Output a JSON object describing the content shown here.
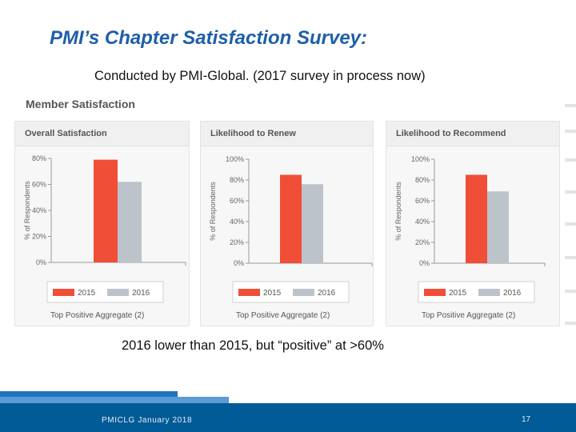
{
  "slide": {
    "title": "PMI’s Chapter Satisfaction Survey:",
    "subtitle": "Conducted by PMI-Global.   (2017 survey in process now)",
    "section_title": "Member Satisfaction",
    "caption": "2016 lower than 2015, but “positive” at >60%",
    "footer": "PMICLG January 2018",
    "page_number": "17"
  },
  "colors": {
    "title": "#1f5fa8",
    "series_2015": "#f04e37",
    "series_2016": "#bcc3cb",
    "footer_band": "#005b96"
  },
  "chart_data": [
    {
      "type": "bar",
      "title": "Overall Satisfaction",
      "ylabel": "% of Respondents",
      "xlabel": "Top Positive Aggregate (2)",
      "ylim": [
        0,
        80
      ],
      "yticks": [
        "0%",
        "20%",
        "40%",
        "60%",
        "80%"
      ],
      "legend": [
        "2015",
        "2016"
      ],
      "series": [
        {
          "name": "2015",
          "values": [
            79
          ]
        },
        {
          "name": "2016",
          "values": [
            62
          ]
        }
      ]
    },
    {
      "type": "bar",
      "title": "Likelihood to Renew",
      "ylabel": "% of Respondents",
      "xlabel": "Top Positive Aggregate (2)",
      "ylim": [
        0,
        100
      ],
      "yticks": [
        "0%",
        "20%",
        "40%",
        "60%",
        "80%",
        "100%"
      ],
      "legend": [
        "2015",
        "2016"
      ],
      "series": [
        {
          "name": "2015",
          "values": [
            85
          ]
        },
        {
          "name": "2016",
          "values": [
            76
          ]
        }
      ]
    },
    {
      "type": "bar",
      "title": "Likelihood to Recommend",
      "ylabel": "% of Respondents",
      "xlabel": "Top Positive Aggregate (2)",
      "ylim": [
        0,
        100
      ],
      "yticks": [
        "0%",
        "20%",
        "40%",
        "60%",
        "80%",
        "100%"
      ],
      "legend": [
        "2015",
        "2016"
      ],
      "series": [
        {
          "name": "2015",
          "values": [
            85
          ]
        },
        {
          "name": "2016",
          "values": [
            69
          ]
        }
      ]
    }
  ]
}
